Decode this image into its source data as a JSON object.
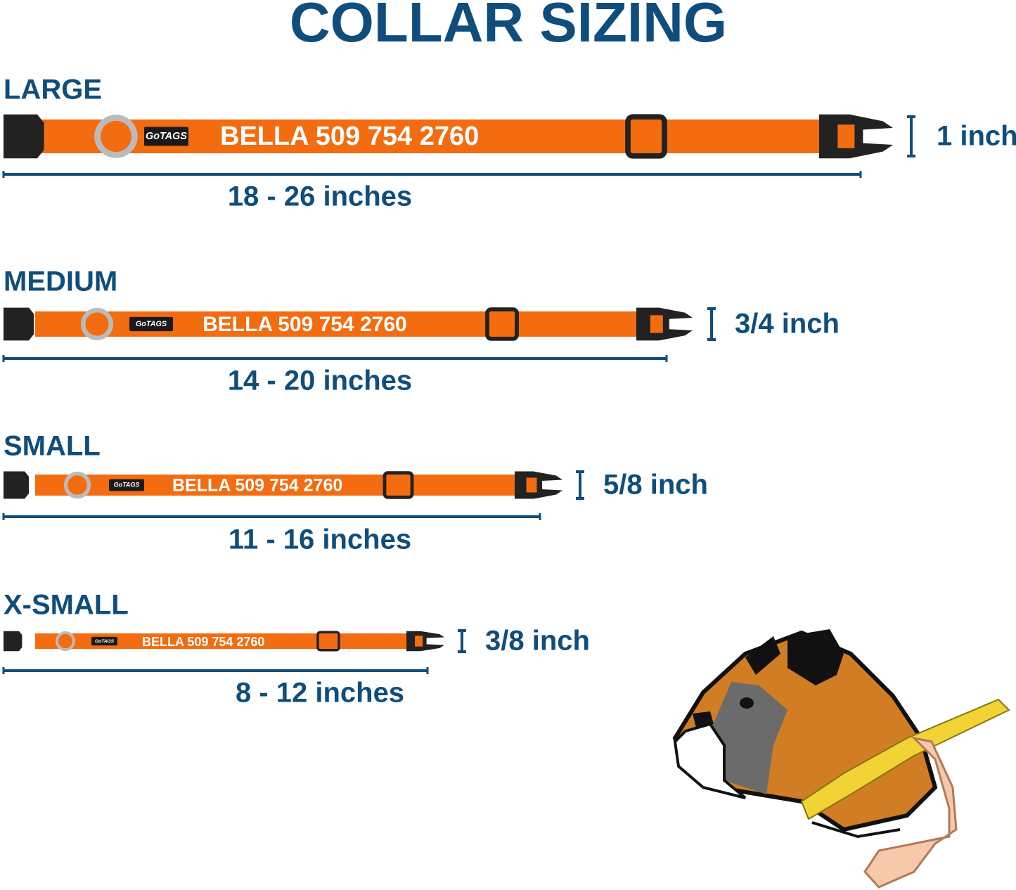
{
  "title": "COLLAR SIZING",
  "logo": "GoTAGS",
  "sizes": [
    {
      "name": "LARGE",
      "collar_text": "BELLA 509 754 2760",
      "length": "18 - 26 inches",
      "width": "1 inch"
    },
    {
      "name": "MEDIUM",
      "collar_text": "BELLA 509 754 2760",
      "length": "14 - 20 inches",
      "width": "3/4 inch"
    },
    {
      "name": "SMALL",
      "collar_text": "BELLA 509 754 2760",
      "length": "11 - 16 inches",
      "width": "5/8 inch"
    },
    {
      "name": "X-SMALL",
      "collar_text": "BELLA 509 754 2760",
      "length": "8 - 12 inches",
      "width": "3/8 inch"
    }
  ]
}
